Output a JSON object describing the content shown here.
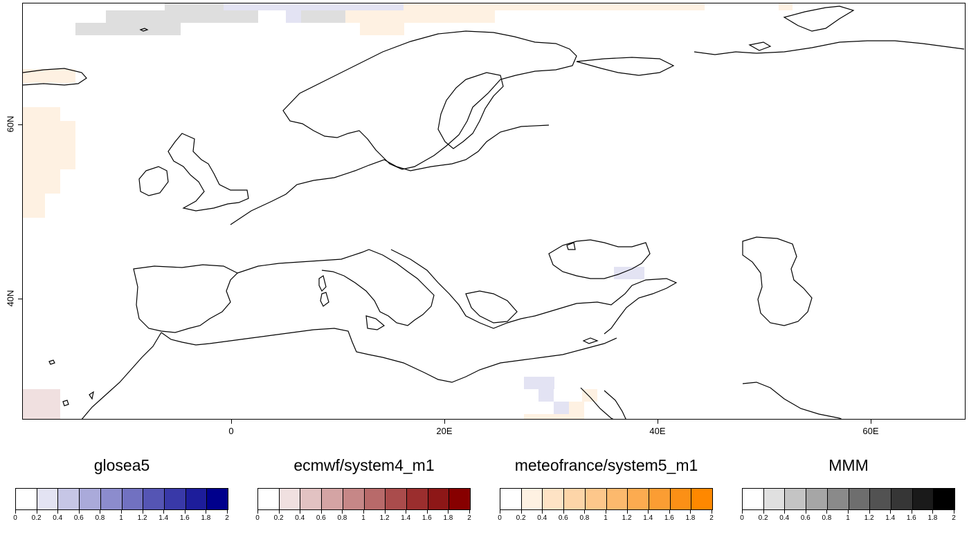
{
  "map": {
    "lat_labels": [
      "60N",
      "40N"
    ],
    "lon_labels": [
      "0",
      "20E",
      "40E",
      "60E"
    ],
    "coastline_color": "#000000",
    "anomaly_cells_colors": {
      "grey": "#dedede",
      "lavender": "#e3e3f3",
      "peach": "#fef1e2",
      "rose": "#f0e0e0"
    }
  },
  "legends": [
    {
      "title": "glosea5",
      "colors": [
        "#ffffff",
        "#e3e3f3",
        "#c6c6e6",
        "#aaaada",
        "#8c8ccd",
        "#7171c1",
        "#5555b4",
        "#3939a8",
        "#1d1d9b",
        "#00008c"
      ]
    },
    {
      "title": "ecmwf/system4_m1",
      "colors": [
        "#ffffff",
        "#f0e0e0",
        "#e2c2c2",
        "#d4a4a4",
        "#c68787",
        "#b86a6a",
        "#aa4c4c",
        "#9b2e2e",
        "#8d1717",
        "#870000"
      ]
    },
    {
      "title": "meteofrance/system5_m1",
      "colors": [
        "#ffffff",
        "#fef1e2",
        "#fee3c5",
        "#fdd5a8",
        "#fdc78b",
        "#fcb96d",
        "#fcab50",
        "#fb9d33",
        "#fb9016",
        "#ff8800"
      ]
    },
    {
      "title": "MMM",
      "colors": [
        "#ffffff",
        "#e0e0e0",
        "#c4c4c4",
        "#a6a6a6",
        "#8a8a8a",
        "#6e6e6e",
        "#525252",
        "#363636",
        "#1a1a1a",
        "#000000"
      ]
    }
  ],
  "legend_ticks": [
    "0",
    "0.2",
    "0.4",
    "0.6",
    "0.8",
    "1",
    "1.2",
    "1.4",
    "1.6",
    "1.8",
    "2"
  ]
}
